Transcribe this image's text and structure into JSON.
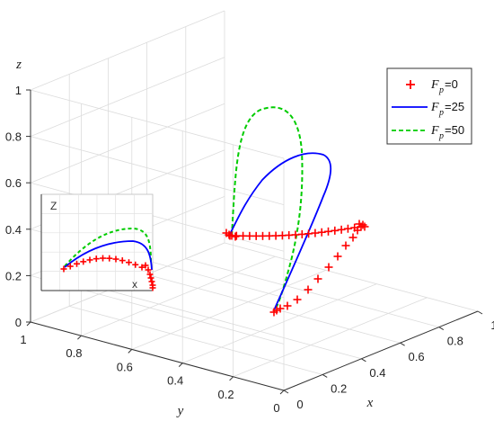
{
  "chart_data": {
    "type": "line3d",
    "axes": {
      "x": {
        "label": "x",
        "ticks": [
          "0",
          "0.2",
          "0.4",
          "0.6",
          "0.8",
          "1"
        ],
        "range": [
          0,
          1
        ]
      },
      "y": {
        "label": "y",
        "ticks": [
          "0",
          "0.2",
          "0.4",
          "0.6",
          "0.8",
          "1"
        ],
        "range": [
          0,
          1
        ]
      },
      "z": {
        "label": "z",
        "ticks": [
          "0",
          "0.2",
          "0.4",
          "0.6",
          "0.8",
          "1"
        ],
        "range": [
          0,
          1
        ]
      }
    },
    "grid": true,
    "legend": {
      "placement": "top-right"
    },
    "series": [
      {
        "name": "F",
        "subscript": "p",
        "suffix": "=0",
        "color": "#ff0000",
        "style": "plus-markers"
      },
      {
        "name": "F",
        "subscript": "p",
        "suffix": "=25",
        "color": "#0000ff",
        "style": "solid"
      },
      {
        "name": "F",
        "subscript": "p",
        "suffix": "=50",
        "color": "#00cc00",
        "style": "dashed"
      }
    ],
    "inset": {
      "xlabel": "x",
      "zlabel": "Z"
    }
  }
}
